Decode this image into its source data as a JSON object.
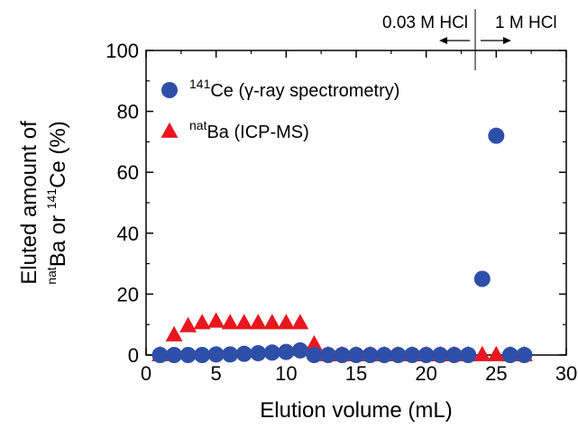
{
  "chart_data": {
    "type": "scatter",
    "xlabel": "Elution volume (mL)",
    "ylabel_line1": "Eluted amount of",
    "ylabel_line2": {
      "sup1": "nat",
      "text1": "Ba or ",
      "sup2": "141",
      "text2": "Ce (%)"
    },
    "xlim": [
      0,
      30
    ],
    "ylim": [
      0,
      100
    ],
    "xticks": [
      "0",
      "5",
      "10",
      "15",
      "20",
      "25",
      "30"
    ],
    "yticks": [
      "0",
      "20",
      "40",
      "60",
      "80",
      "100"
    ],
    "grid": false,
    "legend_position": "top-left",
    "series": [
      {
        "legend_sup": "141",
        "legend_text": "Ce (γ-ray spectrometry)",
        "marker": "circle",
        "color": "#2e4fa8",
        "points": [
          [
            1,
            0
          ],
          [
            2,
            0
          ],
          [
            3,
            0
          ],
          [
            4,
            0
          ],
          [
            5,
            0.2
          ],
          [
            6,
            0.2
          ],
          [
            7,
            0.4
          ],
          [
            8,
            0.6
          ],
          [
            9,
            0.8
          ],
          [
            10,
            1
          ],
          [
            11,
            1.5
          ],
          [
            12,
            0
          ],
          [
            13,
            0
          ],
          [
            14,
            0
          ],
          [
            15,
            0
          ],
          [
            16,
            0
          ],
          [
            17,
            0
          ],
          [
            18,
            0
          ],
          [
            19,
            0
          ],
          [
            20,
            0
          ],
          [
            21,
            0
          ],
          [
            22,
            0
          ],
          [
            23,
            0
          ],
          [
            24,
            25
          ],
          [
            25,
            72
          ],
          [
            26,
            0
          ],
          [
            27,
            0
          ]
        ]
      },
      {
        "legend_sup": "nat",
        "legend_text": "Ba (ICP-MS)",
        "marker": "triangle",
        "color": "#e8171f",
        "points": [
          [
            1,
            0
          ],
          [
            2,
            6.5
          ],
          [
            3,
            9.5
          ],
          [
            4,
            10.5
          ],
          [
            5,
            11
          ],
          [
            6,
            10.5
          ],
          [
            7,
            10.5
          ],
          [
            8,
            10.5
          ],
          [
            9,
            10.5
          ],
          [
            10,
            10.5
          ],
          [
            11,
            10.5
          ],
          [
            12,
            3.5
          ],
          [
            13,
            0
          ],
          [
            14,
            0
          ],
          [
            15,
            0
          ],
          [
            16,
            0
          ],
          [
            17,
            0
          ],
          [
            18,
            0
          ],
          [
            19,
            0
          ],
          [
            20,
            0
          ],
          [
            21,
            0
          ],
          [
            22,
            0
          ],
          [
            23,
            0
          ],
          [
            24,
            0
          ],
          [
            25,
            0
          ],
          [
            26,
            0
          ],
          [
            27,
            0
          ]
        ]
      }
    ],
    "annotations": {
      "left_label": "0.03 M HCl",
      "right_label": "1 M HCl",
      "switch_x": 23.5
    }
  }
}
